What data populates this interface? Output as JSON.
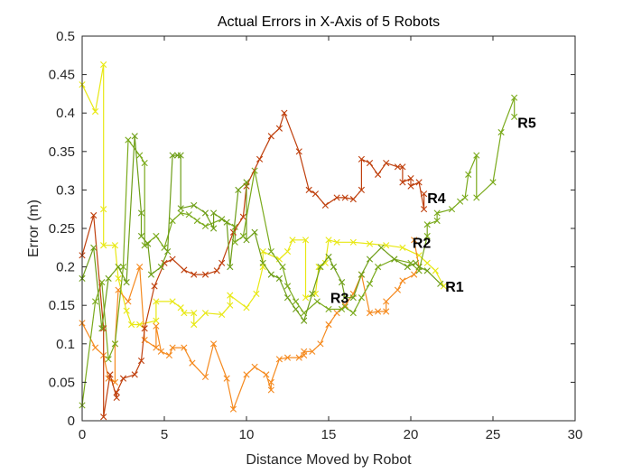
{
  "chart_data": {
    "type": "line",
    "title": "Actual Errors in X-Axis of 5 Robots",
    "xlabel": "Distance Moved by Robot",
    "ylabel": "Error (m)",
    "xlim": [
      0,
      30
    ],
    "ylim": [
      0,
      0.5
    ],
    "xticks": [
      0,
      5,
      10,
      15,
      20,
      25,
      30
    ],
    "yticks": [
      0,
      0.05,
      0.1,
      0.15,
      0.2,
      0.25,
      0.3,
      0.35,
      0.4,
      0.45,
      0.5
    ],
    "grid": false,
    "marker": "x",
    "series": [
      {
        "name": "R1",
        "color": "#e8e813",
        "points": [
          [
            0,
            0.437
          ],
          [
            0.8,
            0.402
          ],
          [
            1.3,
            0.463
          ],
          [
            1.3,
            0.275
          ],
          [
            1.3,
            0.228
          ],
          [
            2,
            0.228
          ],
          [
            2.2,
            0.185
          ],
          [
            2.7,
            0.143
          ],
          [
            3,
            0.125
          ],
          [
            3.5,
            0.125
          ],
          [
            4.5,
            0.13
          ],
          [
            4.5,
            0.155
          ],
          [
            5.5,
            0.155
          ],
          [
            6,
            0.147
          ],
          [
            6.2,
            0.14
          ],
          [
            6.8,
            0.14
          ],
          [
            6.8,
            0.125
          ],
          [
            7.5,
            0.14
          ],
          [
            8.5,
            0.138
          ],
          [
            9,
            0.15
          ],
          [
            9,
            0.163
          ],
          [
            10,
            0.147
          ],
          [
            10.6,
            0.165
          ],
          [
            11,
            0.2
          ],
          [
            11,
            0.22
          ],
          [
            12,
            0.21
          ],
          [
            12.5,
            0.22
          ],
          [
            12.8,
            0.235
          ],
          [
            13.6,
            0.235
          ],
          [
            13.6,
            0.16
          ],
          [
            14.2,
            0.165
          ],
          [
            14.4,
            0.2
          ],
          [
            14.8,
            0.205
          ],
          [
            15,
            0.235
          ],
          [
            15.5,
            0.232
          ],
          [
            16.5,
            0.232
          ],
          [
            17.5,
            0.23
          ],
          [
            18.5,
            0.228
          ],
          [
            19.5,
            0.225
          ],
          [
            20.5,
            0.215
          ],
          [
            21,
            0.205
          ],
          [
            21.5,
            0.195
          ],
          [
            22,
            0.175
          ]
        ]
      },
      {
        "name": "R2",
        "color": "#f58a1f",
        "points": [
          [
            0,
            0.127
          ],
          [
            0.8,
            0.095
          ],
          [
            1.3,
            0.085
          ],
          [
            1.6,
            0.055
          ],
          [
            2,
            0.05
          ],
          [
            2,
            0.1
          ],
          [
            2.2,
            0.17
          ],
          [
            2.8,
            0.155
          ],
          [
            3.5,
            0.2
          ],
          [
            3.8,
            0.105
          ],
          [
            4.5,
            0.095
          ],
          [
            4.5,
            0.123
          ],
          [
            4.8,
            0.09
          ],
          [
            5.3,
            0.085
          ],
          [
            5.5,
            0.095
          ],
          [
            6.2,
            0.095
          ],
          [
            6.7,
            0.075
          ],
          [
            7.5,
            0.057
          ],
          [
            8,
            0.1
          ],
          [
            8.8,
            0.055
          ],
          [
            9.2,
            0.015
          ],
          [
            10,
            0.06
          ],
          [
            10.5,
            0.07
          ],
          [
            11.2,
            0.06
          ],
          [
            11.5,
            0.04
          ],
          [
            11.5,
            0.05
          ],
          [
            12,
            0.08
          ],
          [
            12.5,
            0.082
          ],
          [
            13.2,
            0.082
          ],
          [
            13.5,
            0.085
          ],
          [
            13.5,
            0.09
          ],
          [
            14,
            0.09
          ],
          [
            14.5,
            0.1
          ],
          [
            15,
            0.125
          ],
          [
            15.5,
            0.14
          ],
          [
            16,
            0.15
          ],
          [
            16.5,
            0.165
          ],
          [
            17,
            0.19
          ],
          [
            17.5,
            0.14
          ],
          [
            18,
            0.142
          ],
          [
            18.5,
            0.142
          ],
          [
            18.5,
            0.155
          ],
          [
            19.2,
            0.17
          ],
          [
            19.5,
            0.182
          ],
          [
            20.2,
            0.19
          ],
          [
            20.5,
            0.2
          ],
          [
            20.2,
            0.235
          ]
        ]
      },
      {
        "name": "R3",
        "color": "#7aaa1c",
        "points": [
          [
            0,
            0.02
          ],
          [
            0.8,
            0.155
          ],
          [
            1.2,
            0.18
          ],
          [
            1.6,
            0.08
          ],
          [
            2,
            0.1
          ],
          [
            2.5,
            0.2
          ],
          [
            2.8,
            0.365
          ],
          [
            3.5,
            0.345
          ],
          [
            3.8,
            0.335
          ],
          [
            3.8,
            0.228
          ],
          [
            4.5,
            0.24
          ],
          [
            5,
            0.225
          ],
          [
            5.5,
            0.26
          ],
          [
            6,
            0.27
          ],
          [
            6.5,
            0.268
          ],
          [
            7,
            0.26
          ],
          [
            7.5,
            0.253
          ],
          [
            8.5,
            0.262
          ],
          [
            9.3,
            0.252
          ],
          [
            9.3,
            0.232
          ],
          [
            9.8,
            0.24
          ],
          [
            10.5,
            0.325
          ],
          [
            11.5,
            0.22
          ],
          [
            12.2,
            0.2
          ],
          [
            12.5,
            0.175
          ],
          [
            13,
            0.155
          ],
          [
            13.5,
            0.14
          ],
          [
            14.3,
            0.155
          ],
          [
            15,
            0.145
          ],
          [
            15.8,
            0.145
          ],
          [
            16,
            0.148
          ],
          [
            16.5,
            0.14
          ],
          [
            17,
            0.16
          ],
          [
            17.5,
            0.178
          ],
          [
            18,
            0.2
          ],
          [
            19,
            0.21
          ],
          [
            20,
            0.205
          ],
          [
            20.5,
            0.195
          ],
          [
            21,
            0.24
          ],
          [
            21,
            0.255
          ],
          [
            21.6,
            0.26
          ],
          [
            21.6,
            0.27
          ],
          [
            22.5,
            0.275
          ],
          [
            23,
            0.285
          ],
          [
            23.3,
            0.29
          ],
          [
            23.5,
            0.32
          ],
          [
            24,
            0.345
          ],
          [
            24,
            0.29
          ],
          [
            25,
            0.31
          ],
          [
            25.5,
            0.375
          ],
          [
            26.3,
            0.42
          ],
          [
            26.3,
            0.395
          ]
        ]
      },
      {
        "name": "R4",
        "color": "#bf3f0c",
        "points": [
          [
            0,
            0.215
          ],
          [
            0.7,
            0.267
          ],
          [
            1.3,
            0.12
          ],
          [
            1.3,
            0.005
          ],
          [
            1.7,
            0.06
          ],
          [
            2.1,
            0.03
          ],
          [
            2.1,
            0.037
          ],
          [
            2.5,
            0.055
          ],
          [
            3.2,
            0.06
          ],
          [
            3.6,
            0.078
          ],
          [
            3.8,
            0.12
          ],
          [
            4.4,
            0.175
          ],
          [
            5,
            0.205
          ],
          [
            5.5,
            0.21
          ],
          [
            6.2,
            0.196
          ],
          [
            6.8,
            0.19
          ],
          [
            7.5,
            0.19
          ],
          [
            8.2,
            0.195
          ],
          [
            8.5,
            0.205
          ],
          [
            9.2,
            0.245
          ],
          [
            9.8,
            0.265
          ],
          [
            10,
            0.305
          ],
          [
            10.8,
            0.34
          ],
          [
            11.5,
            0.37
          ],
          [
            12,
            0.38
          ],
          [
            12.3,
            0.4
          ],
          [
            13.2,
            0.35
          ],
          [
            13.8,
            0.3
          ],
          [
            14.2,
            0.295
          ],
          [
            14.8,
            0.28
          ],
          [
            15.5,
            0.29
          ],
          [
            16,
            0.29
          ],
          [
            16.5,
            0.288
          ],
          [
            17,
            0.3
          ],
          [
            17,
            0.34
          ],
          [
            17.5,
            0.335
          ],
          [
            18,
            0.32
          ],
          [
            18.5,
            0.335
          ],
          [
            19.2,
            0.33
          ],
          [
            19.5,
            0.33
          ],
          [
            19.5,
            0.31
          ],
          [
            20,
            0.315
          ],
          [
            20,
            0.305
          ],
          [
            20.5,
            0.31
          ],
          [
            20.8,
            0.275
          ],
          [
            20.8,
            0.295
          ]
        ]
      },
      {
        "name": "R5",
        "color": "#6e9e18",
        "points": [
          [
            0,
            0.185
          ],
          [
            0.7,
            0.225
          ],
          [
            1.2,
            0.12
          ],
          [
            1.6,
            0.185
          ],
          [
            2.2,
            0.2
          ],
          [
            2.7,
            0.18
          ],
          [
            3.2,
            0.37
          ],
          [
            3.6,
            0.27
          ],
          [
            3.6,
            0.24
          ],
          [
            4,
            0.23
          ],
          [
            4.2,
            0.19
          ],
          [
            4.8,
            0.2
          ],
          [
            5.2,
            0.22
          ],
          [
            5.5,
            0.345
          ],
          [
            5.8,
            0.345
          ],
          [
            6,
            0.345
          ],
          [
            6,
            0.276
          ],
          [
            6.8,
            0.28
          ],
          [
            7.5,
            0.27
          ],
          [
            8,
            0.25
          ],
          [
            8,
            0.27
          ],
          [
            8.8,
            0.258
          ],
          [
            9,
            0.2
          ],
          [
            9.5,
            0.3
          ],
          [
            10,
            0.31
          ],
          [
            10,
            0.235
          ],
          [
            10.5,
            0.245
          ],
          [
            11,
            0.205
          ],
          [
            11.5,
            0.19
          ],
          [
            12,
            0.185
          ],
          [
            12.5,
            0.16
          ],
          [
            13,
            0.145
          ],
          [
            13.5,
            0.13
          ],
          [
            14,
            0.165
          ],
          [
            14.5,
            0.2
          ],
          [
            15,
            0.213
          ],
          [
            15.3,
            0.2
          ],
          [
            15.8,
            0.18
          ],
          [
            16,
            0.16
          ],
          [
            16.5,
            0.16
          ],
          [
            17,
            0.19
          ],
          [
            17.5,
            0.21
          ],
          [
            18.2,
            0.225
          ],
          [
            19,
            0.21
          ],
          [
            19.8,
            0.2
          ],
          [
            20.3,
            0.205
          ],
          [
            20.5,
            0.2
          ],
          [
            21,
            0.195
          ],
          [
            21.8,
            0.178
          ]
        ]
      }
    ],
    "annotations": [
      {
        "text": "R1",
        "x": 22.1,
        "y": 0.175
      },
      {
        "text": "R2",
        "x": 20.1,
        "y": 0.232
      },
      {
        "text": "R3",
        "x": 15.1,
        "y": 0.16
      },
      {
        "text": "R4",
        "x": 21.0,
        "y": 0.29
      },
      {
        "text": "R5",
        "x": 26.5,
        "y": 0.388
      }
    ]
  }
}
